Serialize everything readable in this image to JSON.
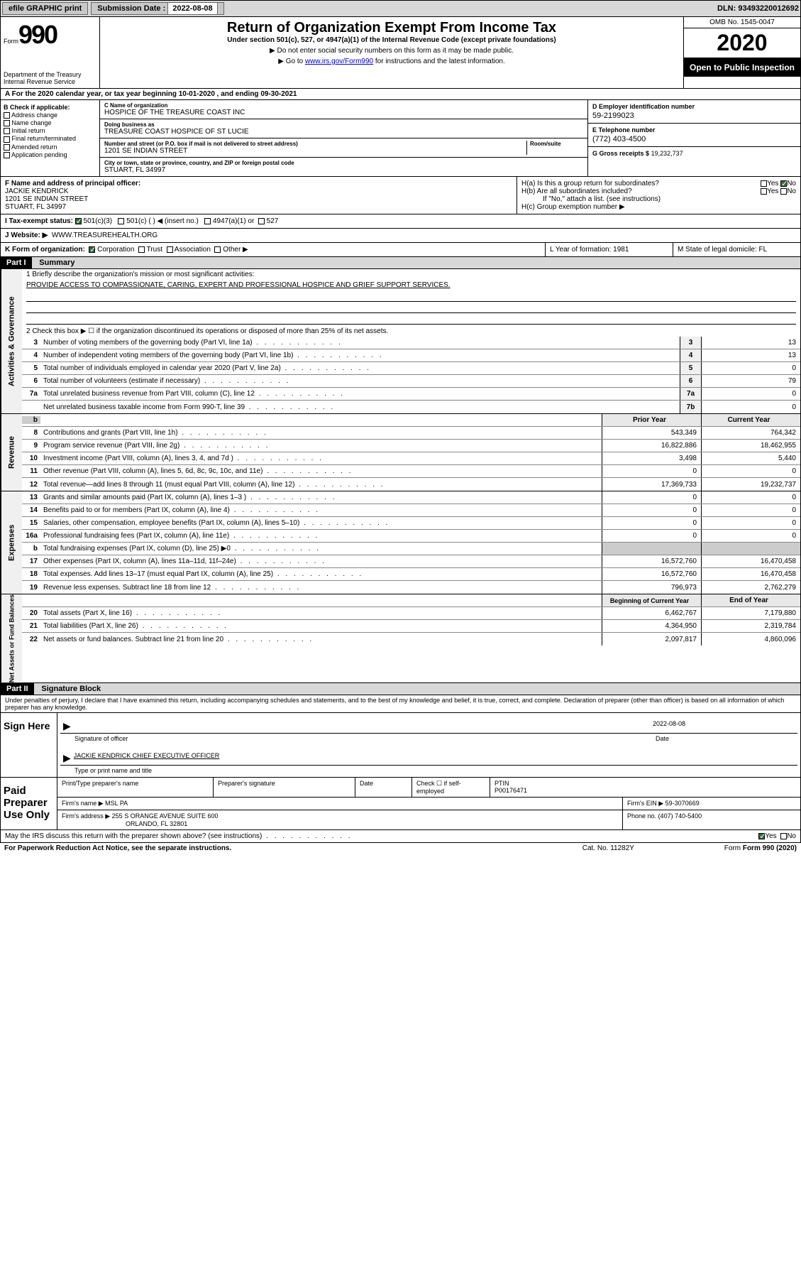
{
  "topbar": {
    "efile": "efile GRAPHIC print",
    "sub_label": "Submission Date :",
    "sub_date": "2022-08-08",
    "dln": "DLN: 93493220012692"
  },
  "header": {
    "form_label": "Form",
    "form_num": "990",
    "dept": "Department of the Treasury\nInternal Revenue Service",
    "title": "Return of Organization Exempt From Income Tax",
    "sub": "Under section 501(c), 527, or 4947(a)(1) of the Internal Revenue Code (except private foundations)",
    "note1": "▶ Do not enter social security numbers on this form as it may be made public.",
    "note2_pre": "▶ Go to ",
    "note2_link": "www.irs.gov/Form990",
    "note2_post": " for instructions and the latest information.",
    "omb": "OMB No. 1545-0047",
    "year": "2020",
    "inspect": "Open to Public Inspection"
  },
  "rowA": "A For the 2020 calendar year, or tax year beginning 10-01-2020    , and ending 09-30-2021",
  "colB": {
    "title": "B Check if applicable:",
    "items": [
      "Address change",
      "Name change",
      "Initial return",
      "Final return/terminated",
      "Amended return",
      "Application pending"
    ]
  },
  "colC": {
    "name_label": "C Name of organization",
    "name": "HOSPICE OF THE TREASURE COAST INC",
    "dba_label": "Doing business as",
    "dba": "TREASURE COAST HOSPICE OF ST LUCIE",
    "street_label": "Number and street (or P.O. box if mail is not delivered to street address)",
    "room_label": "Room/suite",
    "street": "1201 SE INDIAN STREET",
    "city_label": "City or town, state or province, country, and ZIP or foreign postal code",
    "city": "STUART, FL  34997"
  },
  "colD": {
    "ein_label": "D Employer identification number",
    "ein": "59-2199023",
    "tel_label": "E Telephone number",
    "tel": "(772) 403-4500",
    "gross_label": "G Gross receipts $",
    "gross": "19,232,737"
  },
  "rowF": {
    "label": "F Name and address of principal officer:",
    "name": "JACKIE KENDRICK",
    "addr1": "1201 SE INDIAN STREET",
    "addr2": "STUART, FL  34997"
  },
  "rowH": {
    "ha": "H(a)  Is this a group return for subordinates?",
    "hb": "H(b)  Are all subordinates included?",
    "hb_note": "If \"No,\" attach a list. (see instructions)",
    "hc": "H(c)  Group exemption number ▶"
  },
  "rowI": {
    "label": "I   Tax-exempt status:",
    "opts": [
      "501(c)(3)",
      "501(c) (  ) ◀ (insert no.)",
      "4947(a)(1) or",
      "527"
    ]
  },
  "rowJ": {
    "label": "J   Website: ▶",
    "val": "WWW.TREASUREHEALTH.ORG"
  },
  "rowK": {
    "label": "K Form of organization:",
    "opts": [
      "Corporation",
      "Trust",
      "Association",
      "Other ▶"
    ],
    "l": "L Year of formation: 1981",
    "m": "M State of legal domicile: FL"
  },
  "part1": {
    "hdr": "Part I",
    "title": "Summary"
  },
  "governance": {
    "label": "Activities & Governance",
    "q1": "1   Briefly describe the organization's mission or most significant activities:",
    "mission": "PROVIDE ACCESS TO COMPASSIONATE, CARING, EXPERT AND PROFESSIONAL HOSPICE AND GRIEF SUPPORT SERVICES.",
    "q2": "2    Check this box ▶ ☐  if the organization discontinued its operations or disposed of more than 25% of its net assets.",
    "rows": [
      {
        "n": "3",
        "d": "Number of voting members of the governing body (Part VI, line 1a)",
        "b": "3",
        "v": "13"
      },
      {
        "n": "4",
        "d": "Number of independent voting members of the governing body (Part VI, line 1b)",
        "b": "4",
        "v": "13"
      },
      {
        "n": "5",
        "d": "Total number of individuals employed in calendar year 2020 (Part V, line 2a)",
        "b": "5",
        "v": "0"
      },
      {
        "n": "6",
        "d": "Total number of volunteers (estimate if necessary)",
        "b": "6",
        "v": "79"
      },
      {
        "n": "7a",
        "d": "Total unrelated business revenue from Part VIII, column (C), line 12",
        "b": "7a",
        "v": "0"
      },
      {
        "n": "",
        "d": "Net unrelated business taxable income from Form 990-T, line 39",
        "b": "7b",
        "v": "0"
      }
    ]
  },
  "revenue": {
    "label": "Revenue",
    "hdr_prior": "Prior Year",
    "hdr_curr": "Current Year",
    "rows": [
      {
        "n": "8",
        "d": "Contributions and grants (Part VIII, line 1h)",
        "p": "543,349",
        "c": "764,342"
      },
      {
        "n": "9",
        "d": "Program service revenue (Part VIII, line 2g)",
        "p": "16,822,886",
        "c": "18,462,955"
      },
      {
        "n": "10",
        "d": "Investment income (Part VIII, column (A), lines 3, 4, and 7d )",
        "p": "3,498",
        "c": "5,440"
      },
      {
        "n": "11",
        "d": "Other revenue (Part VIII, column (A), lines 5, 6d, 8c, 9c, 10c, and 11e)",
        "p": "0",
        "c": "0"
      },
      {
        "n": "12",
        "d": "Total revenue—add lines 8 through 11 (must equal Part VIII, column (A), line 12)",
        "p": "17,369,733",
        "c": "19,232,737"
      }
    ]
  },
  "expenses": {
    "label": "Expenses",
    "rows": [
      {
        "n": "13",
        "d": "Grants and similar amounts paid (Part IX, column (A), lines 1–3 )",
        "p": "0",
        "c": "0"
      },
      {
        "n": "14",
        "d": "Benefits paid to or for members (Part IX, column (A), line 4)",
        "p": "0",
        "c": "0"
      },
      {
        "n": "15",
        "d": "Salaries, other compensation, employee benefits (Part IX, column (A), lines 5–10)",
        "p": "0",
        "c": "0"
      },
      {
        "n": "16a",
        "d": "Professional fundraising fees (Part IX, column (A), line 11e)",
        "p": "0",
        "c": "0"
      },
      {
        "n": "b",
        "d": "Total fundraising expenses (Part IX, column (D), line 25) ▶0",
        "p": "",
        "c": ""
      },
      {
        "n": "17",
        "d": "Other expenses (Part IX, column (A), lines 11a–11d, 11f–24e)",
        "p": "16,572,760",
        "c": "16,470,458"
      },
      {
        "n": "18",
        "d": "Total expenses. Add lines 13–17 (must equal Part IX, column (A), line 25)",
        "p": "16,572,760",
        "c": "16,470,458"
      },
      {
        "n": "19",
        "d": "Revenue less expenses. Subtract line 18 from line 12",
        "p": "796,973",
        "c": "2,762,279"
      }
    ]
  },
  "netassets": {
    "label": "Net Assets or Fund Balances",
    "hdr_beg": "Beginning of Current Year",
    "hdr_end": "End of Year",
    "rows": [
      {
        "n": "20",
        "d": "Total assets (Part X, line 16)",
        "p": "6,462,767",
        "c": "7,179,880"
      },
      {
        "n": "21",
        "d": "Total liabilities (Part X, line 26)",
        "p": "4,364,950",
        "c": "2,319,784"
      },
      {
        "n": "22",
        "d": "Net assets or fund balances. Subtract line 21 from line 20",
        "p": "2,097,817",
        "c": "4,860,096"
      }
    ]
  },
  "part2": {
    "hdr": "Part II",
    "title": "Signature Block"
  },
  "decl": "Under penalties of perjury, I declare that I have examined this return, including accompanying schedules and statements, and to the best of my knowledge and belief, it is true, correct, and complete. Declaration of preparer (other than officer) is based on all information of which preparer has any knowledge.",
  "sign": {
    "left": "Sign Here",
    "sig_label": "Signature of officer",
    "date_label": "Date",
    "date": "2022-08-08",
    "name": "JACKIE KENDRICK CHIEF EXECUTIVE OFFICER",
    "name_label": "Type or print name and title"
  },
  "prep": {
    "left": "Paid Preparer Use Only",
    "h1": "Print/Type preparer's name",
    "h2": "Preparer's signature",
    "h3": "Date",
    "h4_pre": "Check ☐ if self-employed",
    "h5": "PTIN",
    "ptin": "P00176471",
    "firm_label": "Firm's name    ▶",
    "firm": "MSL PA",
    "ein_label": "Firm's EIN ▶",
    "ein": "59-3070669",
    "addr_label": "Firm's address ▶",
    "addr1": "255 S ORANGE AVENUE SUITE 600",
    "addr2": "ORLANDO, FL  32801",
    "phone_label": "Phone no.",
    "phone": "(407) 740-5400"
  },
  "discuss": "May the IRS discuss this return with the preparer shown above? (see instructions)",
  "footer": {
    "left": "For Paperwork Reduction Act Notice, see the separate instructions.",
    "mid": "Cat. No. 11282Y",
    "right": "Form 990 (2020)"
  }
}
